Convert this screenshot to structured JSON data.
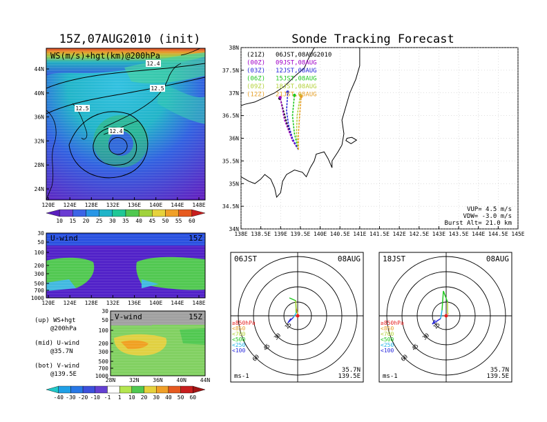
{
  "left_panel": {
    "title": "15Z,07AUG2010 (init)",
    "top_map": {
      "label": "WS(m/s)+hgt(km)@200hPa",
      "lat_ticks": [
        "44N",
        "40N",
        "36N",
        "32N",
        "28N",
        "24N"
      ],
      "lon_ticks": [
        "120E",
        "124E",
        "128E",
        "132E",
        "136E",
        "140E",
        "144E",
        "148E"
      ],
      "contour_labels": [
        "12.4",
        "12.5",
        "12.5",
        "12.4"
      ],
      "colorbar_ticks": [
        "10",
        "15",
        "20",
        "25",
        "30",
        "35",
        "40",
        "45",
        "50",
        "55",
        "60"
      ]
    },
    "u_panel": {
      "label": "U-wind",
      "time": "15Z",
      "p_ticks": [
        "30",
        "50",
        "100",
        "200",
        "300",
        "500",
        "700",
        "1000"
      ],
      "lon_ticks": [
        "120E",
        "124E",
        "128E",
        "132E",
        "136E",
        "140E",
        "144E",
        "148E"
      ]
    },
    "v_panel": {
      "label": "V-wind",
      "time": "15Z",
      "p_ticks": [
        "30",
        "50",
        "100",
        "200",
        "300",
        "500",
        "700",
        "1000"
      ],
      "lat_ticks": [
        "28N",
        "32N",
        "36N",
        "40N",
        "44N"
      ]
    },
    "legend": {
      "up": "(up) WS+hgt",
      "up2": "@200hPa",
      "mid": "(mid) U-wind",
      "mid2": "@35.7N",
      "bot": "(bot) V-wind",
      "bot2": "@139.5E"
    },
    "bottom_colorbar_ticks": [
      "-40",
      "-30",
      "-20",
      "-10",
      "-1",
      "1",
      "10",
      "20",
      "30",
      "40",
      "50",
      "60"
    ]
  },
  "right_panel": {
    "title": "Sonde Tracking Forecast",
    "map": {
      "lat_ticks": [
        "38N",
        "37.5N",
        "37N",
        "36.5N",
        "36N",
        "35.5N",
        "35N",
        "34.5N",
        "34N"
      ],
      "lon_ticks": [
        "138E",
        "138.5E",
        "139E",
        "139.5E",
        "140E",
        "140.5E",
        "141E",
        "141.5E",
        "142E",
        "142.5E",
        "143E",
        "143.5E",
        "144E",
        "144.5E",
        "145E"
      ],
      "launch_times": [
        {
          "utc": "(21Z)",
          "jst": "06JST,08AUG2010",
          "color": "#000000"
        },
        {
          "utc": "(00Z)",
          "jst": "09JST,08AUG",
          "color": "#a000c8"
        },
        {
          "utc": "(03Z)",
          "jst": "12JST,08AUG",
          "color": "#2828dc"
        },
        {
          "utc": "(06Z)",
          "jst": "15JST,08AUG",
          "color": "#20c820"
        },
        {
          "utc": "(09Z)",
          "jst": "18JST,08AUG",
          "color": "#b4d23c"
        },
        {
          "utc": "(12Z)",
          "jst": "21JST,08AUG",
          "color": "#e6a028"
        }
      ],
      "params": [
        "VUP= 4.5 m/s",
        "VDW= -3.0 m/s",
        "Burst Alt= 21.0 km"
      ]
    },
    "polar_left": {
      "time": "06JST",
      "date": "08AUG"
    },
    "polar_right": {
      "time": "18JST",
      "date": "08AUG"
    },
    "polar_common": {
      "ring_labels": [
        "15",
        "30",
        "45",
        "60"
      ],
      "unit": "ms-1",
      "lat": "35.7N",
      "lon": "139.5E",
      "levels": [
        {
          "label": "≥850hPa",
          "color": "#e62020"
        },
        {
          "label": "<850",
          "color": "#e6a028"
        },
        {
          "label": "<700",
          "color": "#b4d23c"
        },
        {
          "label": "<500",
          "color": "#20c820"
        },
        {
          "label": "<250",
          "color": "#20b4e6"
        },
        {
          "label": "<100",
          "color": "#2828dc"
        }
      ]
    }
  },
  "chart_data": [
    {
      "type": "heatmap",
      "title": "15Z,07AUG2010 (init)",
      "field": "WS(m/s)+hgt(km)@200hPa",
      "xlim": [
        120,
        149
      ],
      "ylim": [
        22,
        47
      ],
      "colorbar": [
        10,
        15,
        20,
        25,
        30,
        35,
        40,
        45,
        50,
        55,
        60
      ],
      "contour_values": [
        12.4,
        12.5,
        12.5,
        12.4
      ]
    },
    {
      "type": "heatmap",
      "title": "U-wind",
      "time": "15Z",
      "section_at": "35.7N",
      "xlim": [
        120,
        149
      ],
      "p_levels": [
        30,
        50,
        100,
        200,
        300,
        500,
        700,
        1000
      ]
    },
    {
      "type": "heatmap",
      "title": "V-wind",
      "time": "15Z",
      "section_at": "139.5E",
      "xlim": [
        28,
        44
      ],
      "p_levels": [
        30,
        50,
        100,
        200,
        300,
        500,
        700,
        1000
      ],
      "colorbar": [
        -40,
        -30,
        -20,
        -10,
        -1,
        1,
        10,
        20,
        30,
        40,
        50,
        60
      ]
    },
    {
      "type": "line",
      "title": "Sonde Tracking Forecast",
      "xlabel": "",
      "ylabel": "",
      "xlim": [
        138,
        145
      ],
      "ylim": [
        34,
        38
      ],
      "series": [
        {
          "name": "(21Z) 06JST,08AUG2010",
          "points": [
            [
              139.45,
              35.75
            ],
            [
              139.3,
              35.95
            ],
            [
              139.15,
              36.35
            ],
            [
              139.0,
              36.85
            ],
            [
              138.98,
              36.88
            ]
          ]
        },
        {
          "name": "(00Z) 09JST,08AUG",
          "points": [
            [
              139.45,
              35.75
            ],
            [
              139.3,
              35.95
            ],
            [
              139.1,
              36.4
            ],
            [
              139.0,
              36.85
            ],
            [
              138.99,
              36.9
            ]
          ]
        },
        {
          "name": "(03Z) 12JST,08AUG",
          "points": [
            [
              139.45,
              35.75
            ],
            [
              139.3,
              36.0
            ],
            [
              139.2,
              36.3
            ],
            [
              139.15,
              36.6
            ],
            [
              139.18,
              37.02
            ]
          ]
        },
        {
          "name": "(06Z) 15JST,08AUG",
          "points": [
            [
              139.45,
              35.75
            ],
            [
              139.35,
              36.1
            ],
            [
              139.3,
              36.5
            ],
            [
              139.35,
              36.95
            ]
          ]
        },
        {
          "name": "(09Z) 18JST,08AUG",
          "points": [
            [
              139.45,
              35.75
            ],
            [
              139.4,
              36.1
            ],
            [
              139.42,
              36.5
            ],
            [
              139.5,
              36.95
            ]
          ]
        },
        {
          "name": "(12Z) 21JST,08AUG",
          "points": [
            [
              139.45,
              35.75
            ],
            [
              139.45,
              36.1
            ],
            [
              139.48,
              36.5
            ],
            [
              139.52,
              36.92
            ]
          ]
        }
      ]
    }
  ]
}
